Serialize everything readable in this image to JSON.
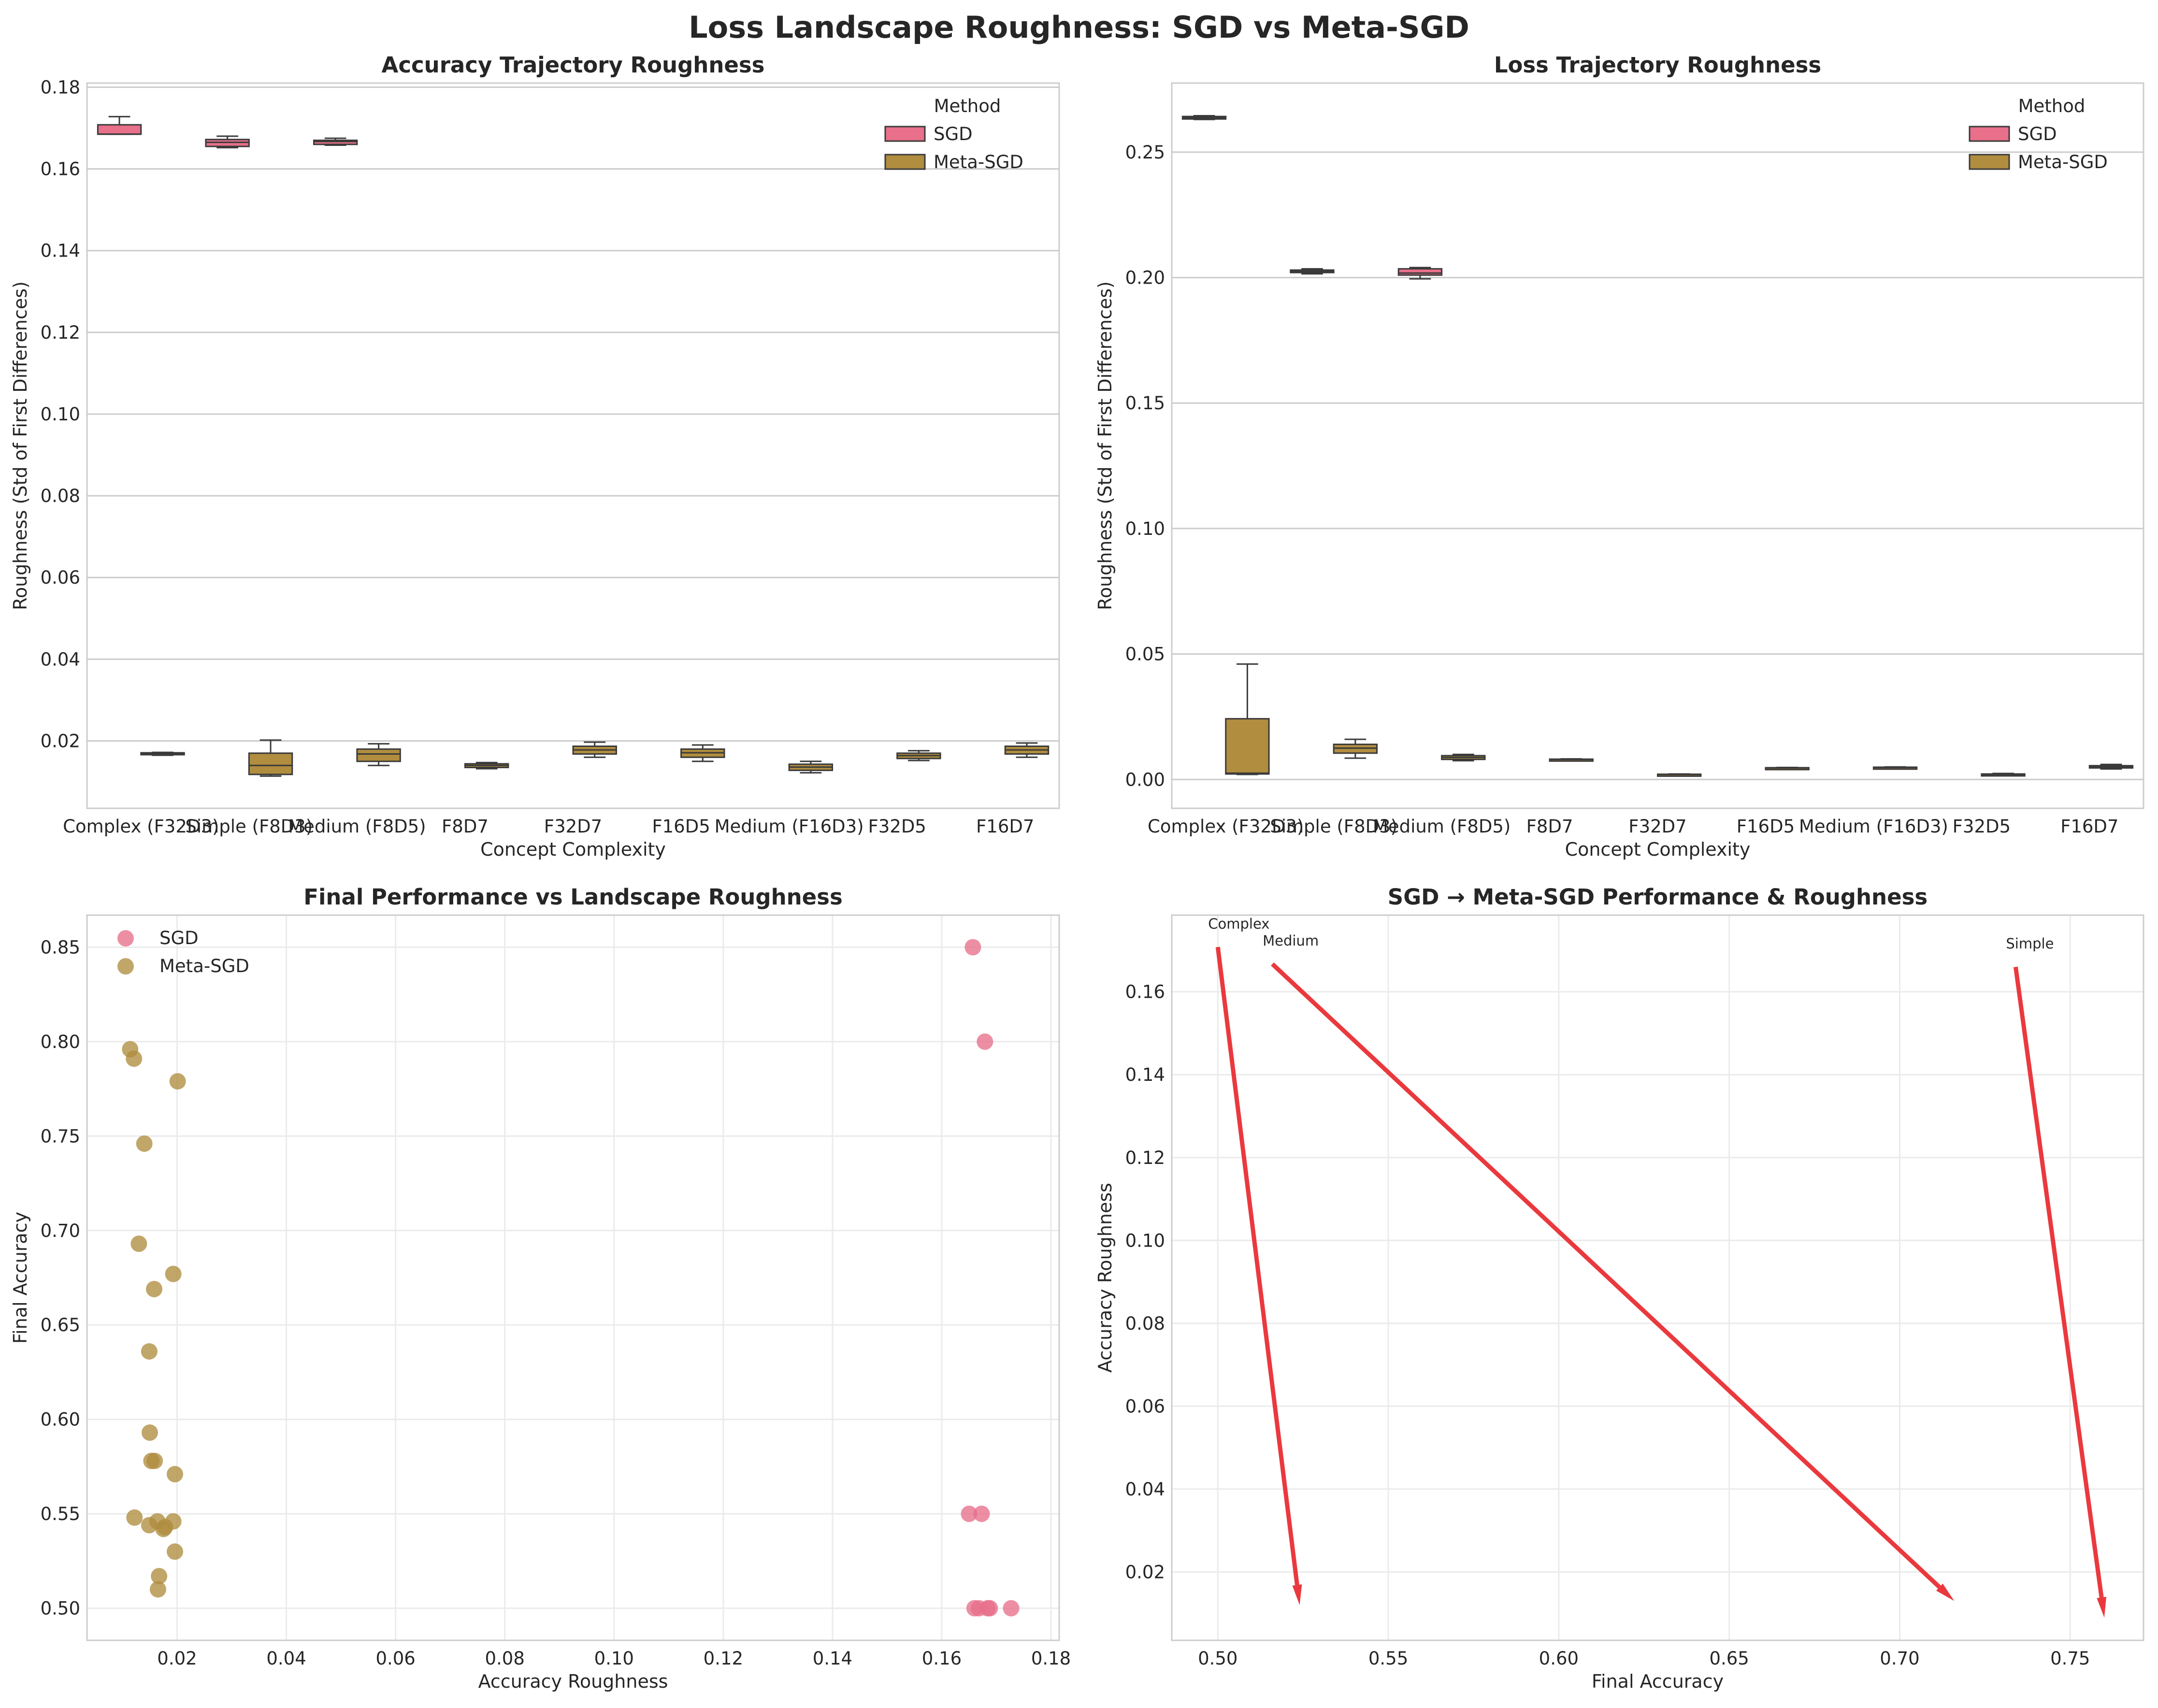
{
  "figure_title": "Loss Landscape Roughness: SGD vs Meta-SGD",
  "colors": {
    "SGD": "#e8708a",
    "Meta-SGD": "#b08d3f",
    "arrow": "#e8282e",
    "grid": "#cccccc",
    "frame": "#cccccc"
  },
  "chart_data": [
    {
      "type": "box",
      "title": "Accuracy Trajectory Roughness",
      "xlabel": "Concept Complexity",
      "ylabel": "Roughness (Std of First Differences)",
      "ylim": [
        0.0035,
        0.181
      ],
      "yticks": [
        "0.02",
        "0.04",
        "0.06",
        "0.08",
        "0.10",
        "0.12",
        "0.14",
        "0.16",
        "0.18"
      ],
      "grid": "y",
      "legend": {
        "title": "Method",
        "placement": "top-right",
        "entries": [
          "SGD",
          "Meta-SGD"
        ]
      },
      "categories": [
        "Complex (F32D3)",
        "Simple (F8D3)",
        "Medium (F8D5)",
        "F8D7",
        "F32D7",
        "F16D5",
        "Medium (F16D3)",
        "F32D5",
        "F16D7"
      ],
      "series": [
        {
          "name": "SGD",
          "boxes": [
            {
              "category": "Complex (F32D3)",
              "min": 0.1685,
              "q1": 0.1685,
              "median": 0.1685,
              "q3": 0.1708,
              "max": 0.1728
            },
            {
              "category": "Simple (F8D3)",
              "min": 0.1652,
              "q1": 0.1655,
              "median": 0.1665,
              "q3": 0.1672,
              "max": 0.168
            },
            {
              "category": "Medium (F8D5)",
              "min": 0.1658,
              "q1": 0.166,
              "median": 0.1667,
              "q3": 0.167,
              "max": 0.1675
            }
          ]
        },
        {
          "name": "Meta-SGD",
          "boxes": [
            {
              "category": "Complex (F32D3)",
              "min": 0.0165,
              "q1": 0.0167,
              "median": 0.0169,
              "q3": 0.0171,
              "max": 0.0172
            },
            {
              "category": "Simple (F8D3)",
              "min": 0.0114,
              "q1": 0.0118,
              "median": 0.014,
              "q3": 0.017,
              "max": 0.0202
            },
            {
              "category": "Medium (F8D5)",
              "min": 0.014,
              "q1": 0.015,
              "median": 0.0168,
              "q3": 0.018,
              "max": 0.0193
            },
            {
              "category": "F8D7",
              "min": 0.0132,
              "q1": 0.0135,
              "median": 0.014,
              "q3": 0.0144,
              "max": 0.0147
            },
            {
              "category": "F32D7",
              "min": 0.016,
              "q1": 0.0168,
              "median": 0.0178,
              "q3": 0.0187,
              "max": 0.0197
            },
            {
              "category": "F16D5",
              "min": 0.015,
              "q1": 0.016,
              "median": 0.0171,
              "q3": 0.018,
              "max": 0.019
            },
            {
              "category": "Medium (F16D3)",
              "min": 0.0122,
              "q1": 0.0128,
              "median": 0.0136,
              "q3": 0.0143,
              "max": 0.015
            },
            {
              "category": "F32D5",
              "min": 0.0152,
              "q1": 0.0157,
              "median": 0.0164,
              "q3": 0.017,
              "max": 0.0176
            },
            {
              "category": "F16D7",
              "min": 0.016,
              "q1": 0.0168,
              "median": 0.0178,
              "q3": 0.0187,
              "max": 0.0195
            }
          ]
        }
      ]
    },
    {
      "type": "box",
      "title": "Loss Trajectory Roughness",
      "xlabel": "Concept Complexity",
      "ylabel": "Roughness (Std of First Differences)",
      "ylim": [
        -0.0115,
        0.2775
      ],
      "yticks": [
        "0.00",
        "0.05",
        "0.10",
        "0.15",
        "0.20",
        "0.25"
      ],
      "grid": "y",
      "legend": {
        "title": "Method",
        "placement": "top-right",
        "entries": [
          "SGD",
          "Meta-SGD"
        ]
      },
      "categories": [
        "Complex (F32D3)",
        "Simple (F8D3)",
        "Medium (F8D5)",
        "F8D7",
        "F32D7",
        "F16D5",
        "Medium (F16D3)",
        "F32D5",
        "F16D7"
      ],
      "series": [
        {
          "name": "SGD",
          "boxes": [
            {
              "category": "Complex (F32D3)",
              "min": 0.263,
              "q1": 0.2632,
              "median": 0.2637,
              "q3": 0.2642,
              "max": 0.2645
            },
            {
              "category": "Simple (F8D3)",
              "min": 0.2015,
              "q1": 0.202,
              "median": 0.2025,
              "q3": 0.203,
              "max": 0.2035
            },
            {
              "category": "Medium (F8D5)",
              "min": 0.1995,
              "q1": 0.201,
              "median": 0.2018,
              "q3": 0.2035,
              "max": 0.204
            }
          ]
        },
        {
          "name": "Meta-SGD",
          "boxes": [
            {
              "category": "Complex (F32D3)",
              "min": 0.002,
              "q1": 0.0022,
              "median": 0.0025,
              "q3": 0.0242,
              "max": 0.046
            },
            {
              "category": "Simple (F8D3)",
              "min": 0.0085,
              "q1": 0.0105,
              "median": 0.0125,
              "q3": 0.014,
              "max": 0.016
            },
            {
              "category": "Medium (F8D5)",
              "min": 0.0075,
              "q1": 0.008,
              "median": 0.0088,
              "q3": 0.0095,
              "max": 0.01
            },
            {
              "category": "F8D7",
              "min": 0.0078,
              "q1": 0.0079,
              "median": 0.008,
              "q3": 0.0081,
              "max": 0.0082
            },
            {
              "category": "F32D7",
              "min": 0.0018,
              "q1": 0.0019,
              "median": 0.002,
              "q3": 0.0021,
              "max": 0.0022
            },
            {
              "category": "F16D5",
              "min": 0.0044,
              "q1": 0.0045,
              "median": 0.0046,
              "q3": 0.0047,
              "max": 0.0048
            },
            {
              "category": "Medium (F16D3)",
              "min": 0.0046,
              "q1": 0.0047,
              "median": 0.0048,
              "q3": 0.0049,
              "max": 0.005
            },
            {
              "category": "F32D5",
              "min": 0.0017,
              "q1": 0.0019,
              "median": 0.002,
              "q3": 0.0022,
              "max": 0.0024
            },
            {
              "category": "F16D7",
              "min": 0.0042,
              "q1": 0.0046,
              "median": 0.005,
              "q3": 0.0055,
              "max": 0.006
            }
          ]
        }
      ]
    },
    {
      "type": "scatter",
      "title": "Final Performance vs Landscape Roughness",
      "xlabel": "Accuracy Roughness",
      "ylabel": "Final Accuracy",
      "xlim": [
        0.0035,
        0.1815
      ],
      "ylim": [
        0.483,
        0.867
      ],
      "xticks": [
        "0.02",
        "0.04",
        "0.06",
        "0.08",
        "0.10",
        "0.12",
        "0.14",
        "0.16",
        "0.18"
      ],
      "yticks": [
        "0.50",
        "0.55",
        "0.60",
        "0.65",
        "0.70",
        "0.75",
        "0.80",
        "0.85"
      ],
      "grid": "both",
      "legend": {
        "placement": "top-left",
        "entries": [
          "SGD",
          "Meta-SGD"
        ]
      },
      "series": [
        {
          "name": "SGD",
          "points": [
            [
              0.1657,
              0.85
            ],
            [
              0.1679,
              0.8
            ],
            [
              0.165,
              0.55
            ],
            [
              0.1673,
              0.55
            ],
            [
              0.166,
              0.5
            ],
            [
              0.1668,
              0.5
            ],
            [
              0.1684,
              0.5
            ],
            [
              0.1688,
              0.5
            ],
            [
              0.1727,
              0.5
            ]
          ]
        },
        {
          "name": "Meta-SGD",
          "points": [
            [
              0.0114,
              0.796
            ],
            [
              0.0121,
              0.791
            ],
            [
              0.0201,
              0.779
            ],
            [
              0.014,
              0.746
            ],
            [
              0.013,
              0.693
            ],
            [
              0.0193,
              0.677
            ],
            [
              0.0158,
              0.669
            ],
            [
              0.0149,
              0.636
            ],
            [
              0.015,
              0.593
            ],
            [
              0.0153,
              0.578
            ],
            [
              0.0159,
              0.578
            ],
            [
              0.0196,
              0.571
            ],
            [
              0.0122,
              0.548
            ],
            [
              0.0149,
              0.544
            ],
            [
              0.0164,
              0.546
            ],
            [
              0.0175,
              0.542
            ],
            [
              0.0178,
              0.543
            ],
            [
              0.0193,
              0.546
            ],
            [
              0.0196,
              0.53
            ],
            [
              0.0167,
              0.517
            ],
            [
              0.0165,
              0.51
            ]
          ]
        }
      ]
    },
    {
      "type": "arrow",
      "title": "SGD → Meta-SGD Performance & Roughness",
      "xlabel": "Final Accuracy",
      "ylabel": "Accuracy Roughness",
      "xlim": [
        0.4865,
        0.7715
      ],
      "ylim": [
        0.0035,
        0.1785
      ],
      "xticks": [
        "0.50",
        "0.55",
        "0.60",
        "0.65",
        "0.70",
        "0.75"
      ],
      "yticks": [
        "0.02",
        "0.04",
        "0.06",
        "0.08",
        "0.10",
        "0.12",
        "0.14",
        "0.16"
      ],
      "grid": "both",
      "arrows": [
        {
          "label": "Complex",
          "from": [
            0.5,
            0.1708
          ],
          "to": [
            0.524,
            0.012
          ]
        },
        {
          "label": "Medium",
          "from": [
            0.516,
            0.1667
          ],
          "to": [
            0.716,
            0.013
          ]
        },
        {
          "label": "Simple",
          "from": [
            0.734,
            0.166
          ],
          "to": [
            0.76,
            0.009
          ]
        }
      ]
    }
  ]
}
